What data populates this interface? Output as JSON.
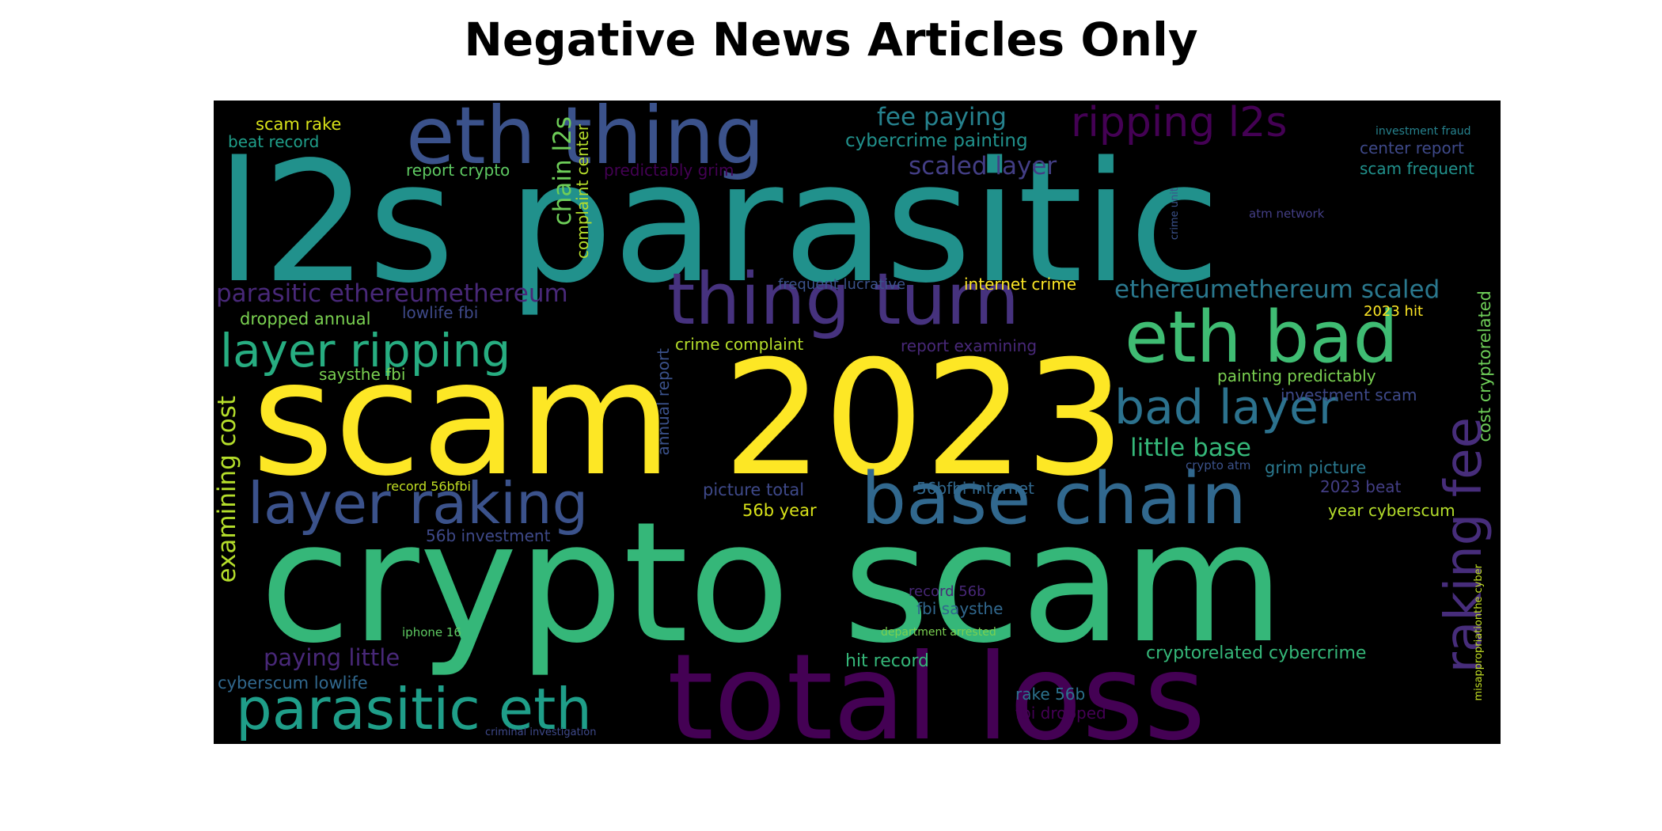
{
  "title": "Negative News Articles Only",
  "colors": {
    "background": "#000000",
    "palette": [
      "#440154",
      "#3b528b",
      "#21918c",
      "#5ec962",
      "#fde725"
    ]
  },
  "words": [
    {
      "text": "l2s parasitic",
      "color": "#21918c"
    },
    {
      "text": "scam 2023",
      "color": "#fde725"
    },
    {
      "text": "crypto scam",
      "color": "#35b779"
    },
    {
      "text": "total loss",
      "color": "#440154"
    },
    {
      "text": "eth thing",
      "color": "#3b528b"
    },
    {
      "text": "thing turn",
      "color": "#46327e"
    },
    {
      "text": "base chain",
      "color": "#31688e"
    },
    {
      "text": "eth bad",
      "color": "#3fbc73"
    },
    {
      "text": "layer ripping",
      "color": "#27ad81"
    },
    {
      "text": "layer raking",
      "color": "#3b528b"
    },
    {
      "text": "parasitic eth",
      "color": "#1f9e89"
    },
    {
      "text": "ripping l2s",
      "color": "#440154"
    },
    {
      "text": "bad layer",
      "color": "#2c728e"
    },
    {
      "text": "raking fee",
      "color": "#472d7b"
    },
    {
      "text": "ethereumethereum scaled",
      "color": "#2a788e"
    },
    {
      "text": "parasitic ethereumethereum",
      "color": "#482878"
    },
    {
      "text": "little base",
      "color": "#35b779"
    },
    {
      "text": "examining cost",
      "color": "#b5de2b"
    },
    {
      "text": "fee paying",
      "color": "#26828e"
    },
    {
      "text": "scaled layer",
      "color": "#433e85"
    },
    {
      "text": "cybercrime painting",
      "color": "#21918c"
    },
    {
      "text": "chain l2s",
      "color": "#6ece58"
    },
    {
      "text": "complaint center",
      "color": "#b5de2b"
    },
    {
      "text": "predictably grim",
      "color": "#440154"
    },
    {
      "text": "report crypto",
      "color": "#5ec962"
    },
    {
      "text": "scam rake",
      "color": "#d8e219"
    },
    {
      "text": "beat record",
      "color": "#1f9e89"
    },
    {
      "text": "investment fraud",
      "color": "#26828e"
    },
    {
      "text": "center report",
      "color": "#3e4989"
    },
    {
      "text": "scam frequent",
      "color": "#21918c"
    },
    {
      "text": "atm network",
      "color": "#433e85"
    },
    {
      "text": "crime unit",
      "color": "#3b528b"
    },
    {
      "text": "frequent lucrative",
      "color": "#3b528b"
    },
    {
      "text": "internet crime",
      "color": "#fde725"
    },
    {
      "text": "2023 hit",
      "color": "#fde725"
    },
    {
      "text": "cost cryptorelated",
      "color": "#6ece58"
    },
    {
      "text": "dropped annual",
      "color": "#7ad151"
    },
    {
      "text": "lowlife fbi",
      "color": "#3e4989"
    },
    {
      "text": "crime complaint",
      "color": "#b5de2b"
    },
    {
      "text": "report examining",
      "color": "#482878"
    },
    {
      "text": "annual report",
      "color": "#3b528b"
    },
    {
      "text": "saysthe fbi",
      "color": "#7ad151"
    },
    {
      "text": "painting predictably",
      "color": "#7ad151"
    },
    {
      "text": "investment scam",
      "color": "#3e4989"
    },
    {
      "text": "crypto atm",
      "color": "#3b528b"
    },
    {
      "text": "grim picture",
      "color": "#2a788e"
    },
    {
      "text": "2023 beat",
      "color": "#433e85"
    },
    {
      "text": "year cyberscum",
      "color": "#b5de2b"
    },
    {
      "text": "record 56bfbi",
      "color": "#c2df23"
    },
    {
      "text": "picture total",
      "color": "#3e4989"
    },
    {
      "text": "56bfbi internet",
      "color": "#31688e"
    },
    {
      "text": "56b year",
      "color": "#d8e219"
    },
    {
      "text": "56b investment",
      "color": "#3e4989"
    },
    {
      "text": "record 56b",
      "color": "#482878"
    },
    {
      "text": "fbi saysthe",
      "color": "#31688e"
    },
    {
      "text": "iphone 16",
      "color": "#5ec962"
    },
    {
      "text": "department arrested",
      "color": "#7ad151"
    },
    {
      "text": "misappropriationthe cyber",
      "color": "#c2df23"
    },
    {
      "text": "paying little",
      "color": "#482878"
    },
    {
      "text": "cryptorelated cybercrime",
      "color": "#35b779"
    },
    {
      "text": "hit record",
      "color": "#35b779"
    },
    {
      "text": "cyberscum lowlife",
      "color": "#31688e"
    },
    {
      "text": "rake 56b",
      "color": "#2c728e"
    },
    {
      "text": "fbi dropped",
      "color": "#440154"
    },
    {
      "text": "criminal investigation",
      "color": "#3e4989"
    }
  ]
}
